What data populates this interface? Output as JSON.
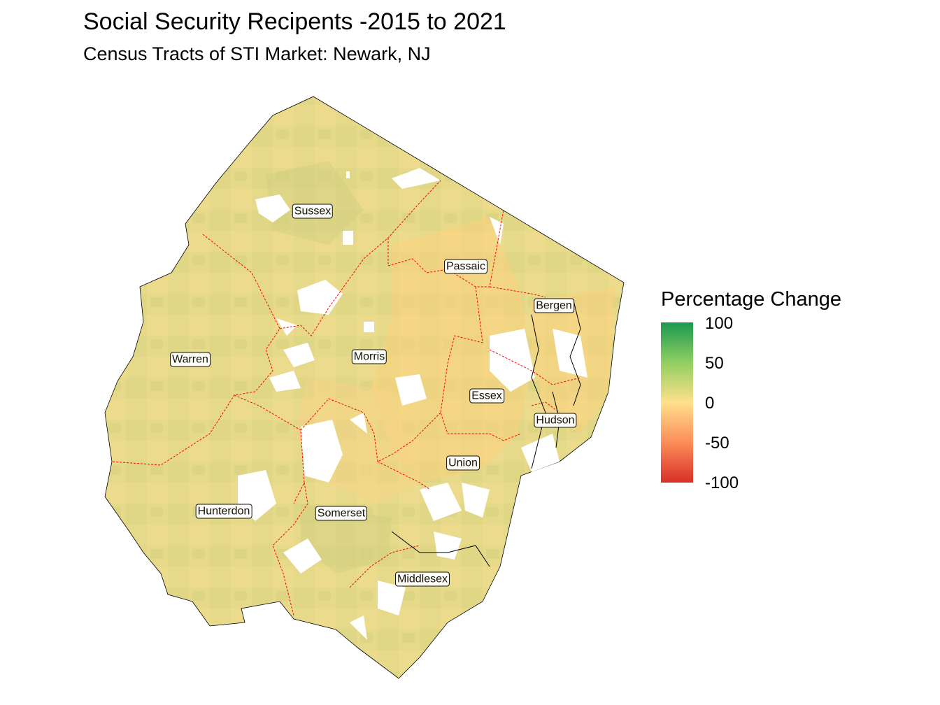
{
  "title": "Social Security Recipents -2015 to 2021",
  "subtitle": "Census Tracts of STI Market: Newark, NJ",
  "legend": {
    "title": "Percentage Change",
    "ticks": [
      "100",
      "50",
      "0",
      "-50",
      "-100"
    ],
    "colors": [
      "#1a9850",
      "#91cf60",
      "#fee08b",
      "#fc8d59",
      "#d73027"
    ]
  },
  "map": {
    "fill_color": "#e8da8a",
    "boundary_color": "#ff0000",
    "counties": [
      "Sussex",
      "Passaic",
      "Bergen",
      "Warren",
      "Morris",
      "Essex",
      "Hudson",
      "Union",
      "Hunterdon",
      "Somerset",
      "Middlesex"
    ]
  }
}
